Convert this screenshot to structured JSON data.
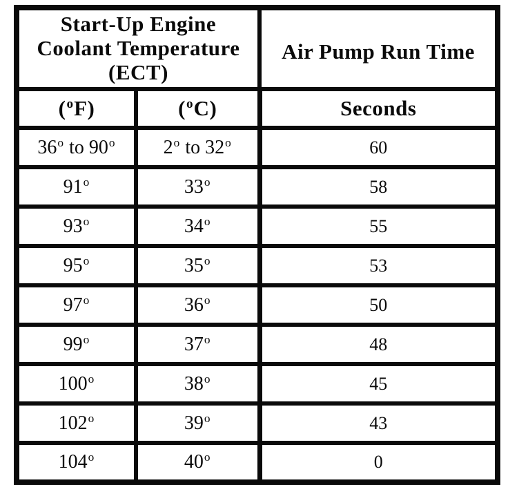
{
  "table": {
    "header": {
      "ect_title": "Start-Up Engine Coolant Temperature (ECT)",
      "air_pump_title": "Air Pump Run Time",
      "col_f": "(°F)",
      "col_c": "(°C)",
      "col_seconds": "Seconds"
    },
    "rows": [
      {
        "f": "36° to 90°",
        "c": "2° to 32°",
        "seconds": "60"
      },
      {
        "f": "91°",
        "c": "33°",
        "seconds": "58"
      },
      {
        "f": "93°",
        "c": "34°",
        "seconds": "55"
      },
      {
        "f": "95°",
        "c": "35°",
        "seconds": "53"
      },
      {
        "f": "97°",
        "c": "36°",
        "seconds": "50"
      },
      {
        "f": "99°",
        "c": "37°",
        "seconds": "48"
      },
      {
        "f": "100°",
        "c": "38°",
        "seconds": "45"
      },
      {
        "f": "102°",
        "c": "39°",
        "seconds": "43"
      },
      {
        "f": "104°",
        "c": "40°",
        "seconds": "0"
      }
    ],
    "colors": {
      "ink": "#0a0a0a",
      "paper": "#ffffff"
    }
  }
}
